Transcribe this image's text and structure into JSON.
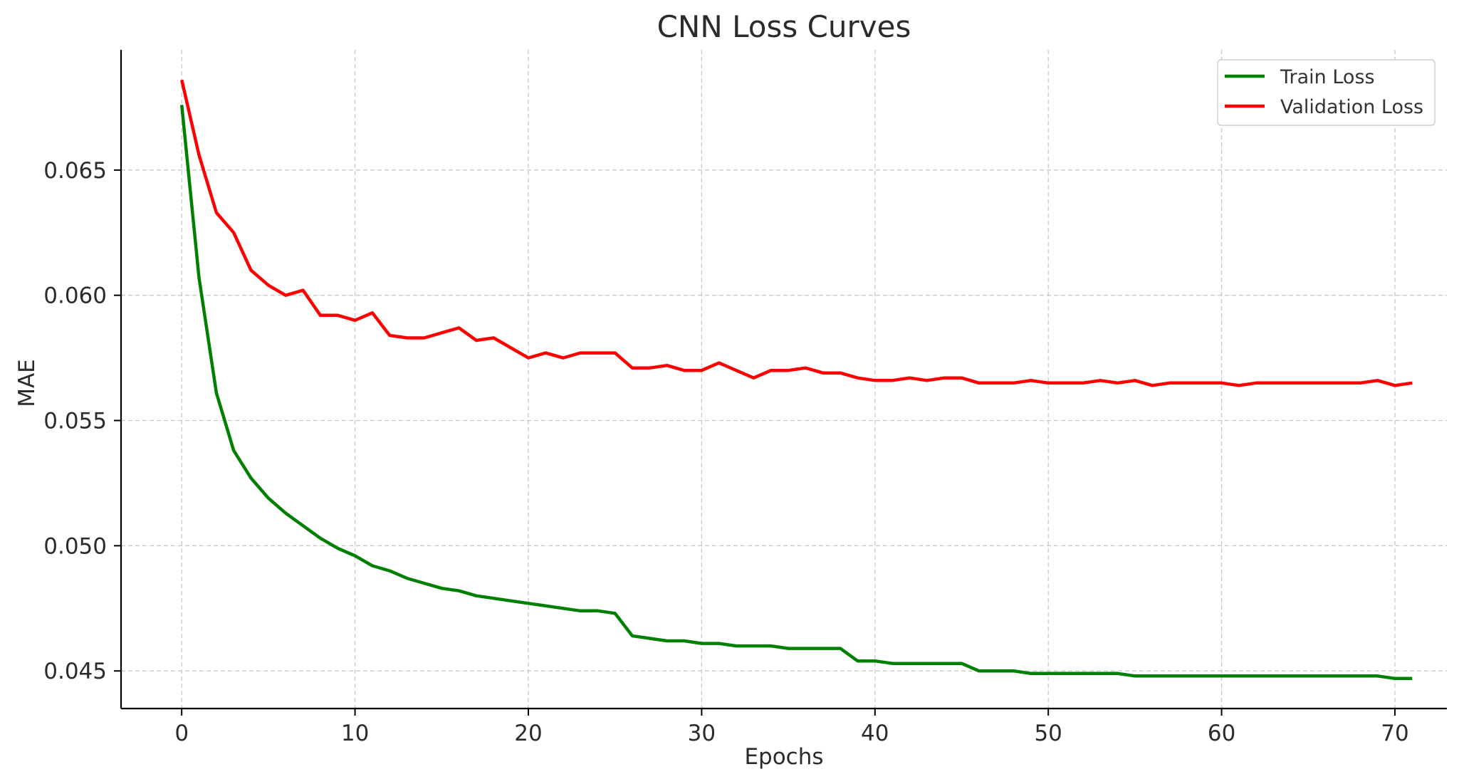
{
  "chart_data": {
    "type": "line",
    "title": "CNN Loss Curves",
    "xlabel": "Epochs",
    "ylabel": "MAE",
    "xlim": [
      -3.5,
      73.0
    ],
    "ylim": [
      0.0435,
      0.0698
    ],
    "x_ticks": [
      0,
      10,
      20,
      30,
      40,
      50,
      60,
      70
    ],
    "y_ticks": [
      0.045,
      0.05,
      0.055,
      0.06,
      0.065
    ],
    "x_tick_labels": [
      "0",
      "10",
      "20",
      "30",
      "40",
      "50",
      "60",
      "70"
    ],
    "y_tick_labels": [
      "0.045",
      "0.050",
      "0.055",
      "0.060",
      "0.065"
    ],
    "grid": true,
    "legend_position": "top-right",
    "x": [
      0,
      1,
      2,
      3,
      4,
      5,
      6,
      7,
      8,
      9,
      10,
      11,
      12,
      13,
      14,
      15,
      16,
      17,
      18,
      19,
      20,
      21,
      22,
      23,
      24,
      25,
      26,
      27,
      28,
      29,
      30,
      31,
      32,
      33,
      34,
      35,
      36,
      37,
      38,
      39,
      40,
      41,
      42,
      43,
      44,
      45,
      46,
      47,
      48,
      49,
      50,
      51,
      52,
      53,
      54,
      55,
      56,
      57,
      58,
      59,
      60,
      61,
      62,
      63,
      64,
      65,
      66,
      67,
      68,
      69,
      70,
      71
    ],
    "series": [
      {
        "name": "Train Loss",
        "color": "#008000",
        "values": [
          0.0676,
          0.0607,
          0.0561,
          0.0538,
          0.0527,
          0.0519,
          0.0513,
          0.0508,
          0.0503,
          0.0499,
          0.0496,
          0.0492,
          0.049,
          0.0487,
          0.0485,
          0.0483,
          0.0482,
          0.048,
          0.0479,
          0.0478,
          0.0477,
          0.0476,
          0.0475,
          0.0474,
          0.0474,
          0.0473,
          0.0464,
          0.0463,
          0.0462,
          0.0462,
          0.0461,
          0.0461,
          0.046,
          0.046,
          0.046,
          0.0459,
          0.0459,
          0.0459,
          0.0459,
          0.0454,
          0.0454,
          0.0453,
          0.0453,
          0.0453,
          0.0453,
          0.0453,
          0.045,
          0.045,
          0.045,
          0.0449,
          0.0449,
          0.0449,
          0.0449,
          0.0449,
          0.0449,
          0.0448,
          0.0448,
          0.0448,
          0.0448,
          0.0448,
          0.0448,
          0.0448,
          0.0448,
          0.0448,
          0.0448,
          0.0448,
          0.0448,
          0.0448,
          0.0448,
          0.0448,
          0.0447,
          0.0447
        ]
      },
      {
        "name": "Validation Loss",
        "color": "#ff0000",
        "values": [
          0.0686,
          0.0656,
          0.0633,
          0.0625,
          0.061,
          0.0604,
          0.06,
          0.0602,
          0.0592,
          0.0592,
          0.059,
          0.0593,
          0.0584,
          0.0583,
          0.0583,
          0.0585,
          0.0587,
          0.0582,
          0.0583,
          0.0579,
          0.0575,
          0.0577,
          0.0575,
          0.0577,
          0.0577,
          0.0577,
          0.0571,
          0.0571,
          0.0572,
          0.057,
          0.057,
          0.0573,
          0.057,
          0.0567,
          0.057,
          0.057,
          0.0571,
          0.0569,
          0.0569,
          0.0567,
          0.0566,
          0.0566,
          0.0567,
          0.0566,
          0.0567,
          0.0567,
          0.0565,
          0.0565,
          0.0565,
          0.0566,
          0.0565,
          0.0565,
          0.0565,
          0.0566,
          0.0565,
          0.0566,
          0.0564,
          0.0565,
          0.0565,
          0.0565,
          0.0565,
          0.0564,
          0.0565,
          0.0565,
          0.0565,
          0.0565,
          0.0565,
          0.0565,
          0.0565,
          0.0566,
          0.0564,
          0.0565
        ]
      }
    ]
  }
}
